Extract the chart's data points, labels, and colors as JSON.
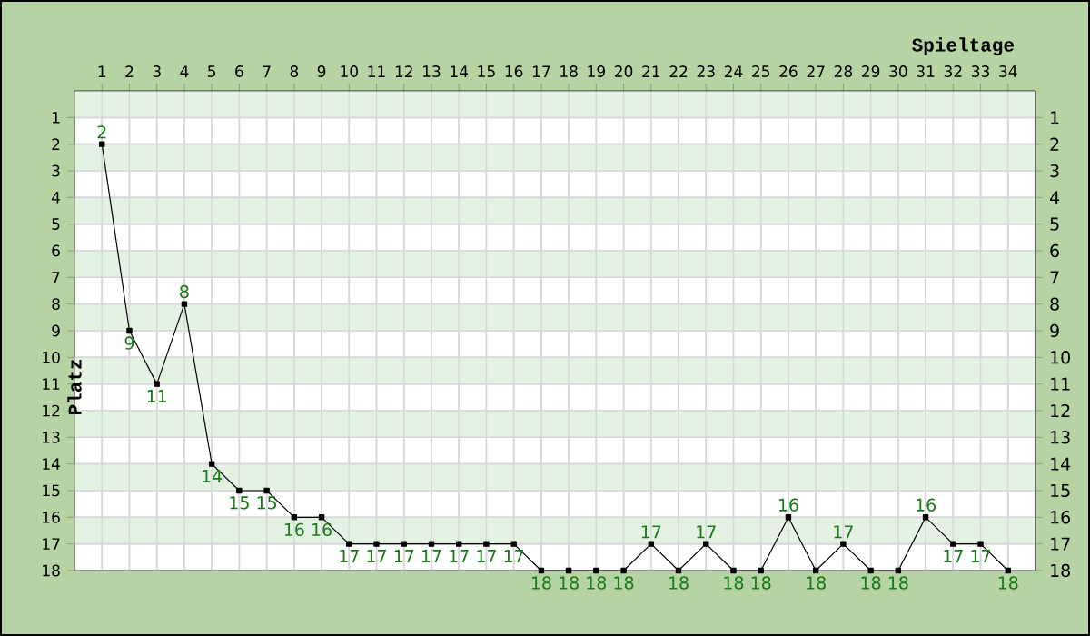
{
  "chart_data": {
    "type": "line",
    "xlabel": "Spieltage",
    "ylabel": "Platz",
    "x": [
      1,
      2,
      3,
      4,
      5,
      6,
      7,
      8,
      9,
      10,
      11,
      12,
      13,
      14,
      15,
      16,
      17,
      18,
      19,
      20,
      21,
      22,
      23,
      24,
      25,
      26,
      27,
      28,
      29,
      30,
      31,
      32,
      33,
      34
    ],
    "values": [
      2,
      9,
      11,
      8,
      14,
      15,
      15,
      16,
      16,
      17,
      17,
      17,
      17,
      17,
      17,
      17,
      18,
      18,
      18,
      18,
      17,
      18,
      17,
      18,
      18,
      16,
      18,
      17,
      18,
      18,
      16,
      17,
      17,
      18
    ],
    "color": "#000000",
    "marker": "square",
    "data_labels": true,
    "grid": true,
    "xlim": [
      0,
      35
    ],
    "xticks": [
      1,
      2,
      3,
      4,
      5,
      6,
      7,
      8,
      9,
      10,
      11,
      12,
      13,
      14,
      15,
      16,
      17,
      18,
      19,
      20,
      21,
      22,
      23,
      24,
      25,
      26,
      27,
      28,
      29,
      30,
      31,
      32,
      33,
      34
    ],
    "ylim": [
      18,
      0
    ],
    "yticks": [
      1,
      2,
      3,
      4,
      5,
      6,
      7,
      8,
      9,
      10,
      11,
      12,
      13,
      14,
      15,
      16,
      17,
      18
    ],
    "y2lim": [
      18,
      0
    ],
    "y2ticks": [
      1,
      2,
      3,
      4,
      5,
      6,
      7,
      8,
      9,
      10,
      11,
      12,
      13,
      14,
      15,
      16,
      17,
      18
    ],
    "bands": [
      {
        "axis": "y",
        "from": 0,
        "to": 1,
        "color": "#e4f2e4"
      },
      {
        "axis": "y",
        "from": 2,
        "to": 3,
        "color": "#e4f2e4"
      },
      {
        "axis": "y",
        "from": 4,
        "to": 5,
        "color": "#e4f2e4"
      },
      {
        "axis": "y",
        "from": 6,
        "to": 7,
        "color": "#e4f2e4"
      },
      {
        "axis": "y",
        "from": 8,
        "to": 9,
        "color": "#e4f2e4"
      },
      {
        "axis": "y",
        "from": 10,
        "to": 11,
        "color": "#e4f2e4"
      },
      {
        "axis": "y",
        "from": 12,
        "to": 13,
        "color": "#e4f2e4"
      },
      {
        "axis": "y",
        "from": 14,
        "to": 15,
        "color": "#e4f2e4"
      },
      {
        "axis": "y",
        "from": 16,
        "to": 17,
        "color": "#e4f2e4"
      }
    ]
  }
}
